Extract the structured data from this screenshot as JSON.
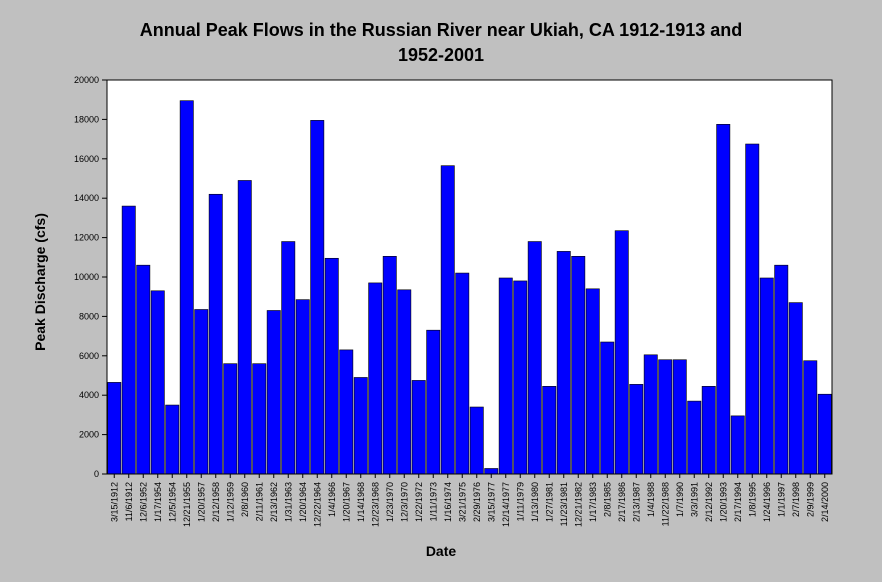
{
  "chart_data": {
    "type": "bar",
    "title_line1": "Annual Peak Flows in the Russian River near Ukiah, CA 1912-1913 and",
    "title_line2": "1952-2001",
    "xlabel": "Date",
    "ylabel": "Peak Discharge (cfs)",
    "ylim": [
      0,
      20000
    ],
    "yticks": [
      0,
      2000,
      4000,
      6000,
      8000,
      10000,
      12000,
      14000,
      16000,
      18000,
      20000
    ],
    "grid": false,
    "bar_color": "#0000ff",
    "plot_background": "#ffffff",
    "categories": [
      "3/15/1912",
      "11/6/1912",
      "12/6/1952",
      "1/17/1954",
      "12/5/1954",
      "12/21/1955",
      "1/20/1957",
      "2/12/1958",
      "1/12/1959",
      "2/8/1960",
      "2/11/1961",
      "2/13/1962",
      "1/31/1963",
      "1/20/1964",
      "12/22/1964",
      "1/4/1966",
      "1/20/1967",
      "1/14/1968",
      "12/23/1968",
      "1/23/1970",
      "12/3/1970",
      "1/22/1972",
      "1/11/1973",
      "1/16/1974",
      "3/21/1975",
      "2/29/1976",
      "3/15/1977",
      "12/14/1977",
      "1/11/1979",
      "1/13/1980",
      "1/27/1981",
      "11/23/1981",
      "12/21/1982",
      "1/17/1983",
      "2/8/1985",
      "2/17/1986",
      "2/13/1987",
      "1/4/1988",
      "11/22/1988",
      "1/7/1990",
      "3/3/1991",
      "2/12/1992",
      "1/20/1993",
      "2/17/1994",
      "1/8/1995",
      "1/24/1996",
      "1/1/1997",
      "2/7/1998",
      "2/9/1999",
      "2/14/2000"
    ],
    "values": [
      4650,
      13600,
      10600,
      9300,
      3500,
      18950,
      8350,
      14200,
      5600,
      14900,
      5600,
      8300,
      11800,
      8850,
      17950,
      10950,
      6300,
      4900,
      9700,
      11050,
      9350,
      4750,
      7300,
      15650,
      10200,
      3400,
      280,
      9950,
      9800,
      11800,
      4450,
      11300,
      11050,
      9400,
      6700,
      12350,
      4550,
      6050,
      5800,
      5800,
      3700,
      4450,
      17750,
      2950,
      16750,
      9950,
      10600,
      8700,
      5750,
      4050
    ]
  }
}
